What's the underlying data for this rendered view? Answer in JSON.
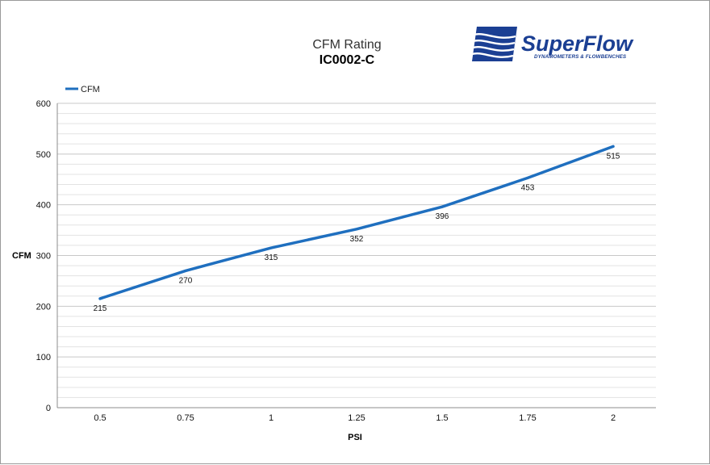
{
  "chart_data": {
    "type": "line",
    "title": "CFM Rating",
    "subtitle": "IC0002-C",
    "xlabel": "PSI",
    "ylabel": "CFM",
    "categories": [
      "0.5",
      "0.75",
      "1",
      "1.25",
      "1.5",
      "1.75",
      "2"
    ],
    "series": [
      {
        "name": "CFM",
        "values": [
          215,
          270,
          315,
          352,
          396,
          453,
          515
        ],
        "color": "#1f6fbf"
      }
    ],
    "ylim": [
      0,
      600
    ],
    "yticks": [
      0,
      100,
      200,
      300,
      400,
      500,
      600
    ],
    "y_minor_step": 20,
    "grid": true,
    "legend": "top-left",
    "data_labels": true
  },
  "logo": {
    "name": "SuperFlow",
    "tagline": "DYNAMOMETERS & FLOWBENCHES",
    "color": "#1b3f93"
  }
}
